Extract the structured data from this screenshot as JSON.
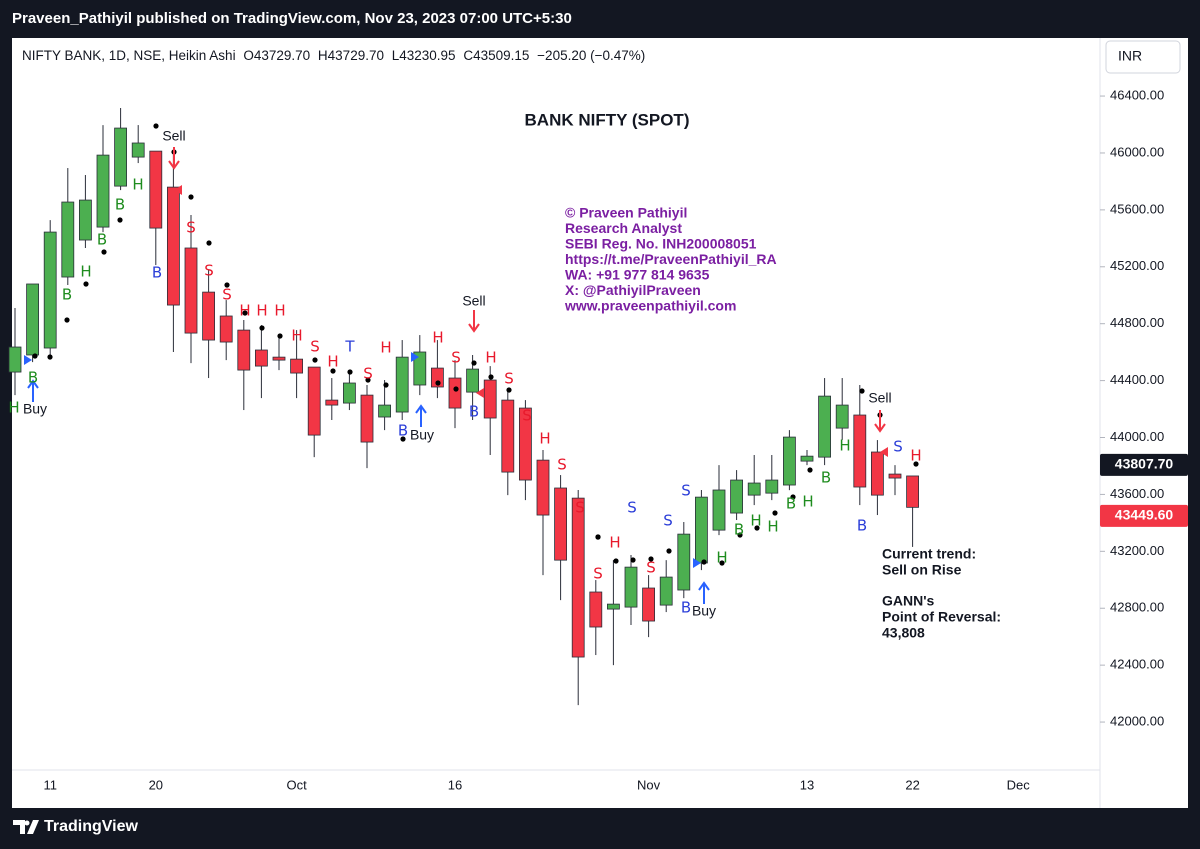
{
  "top_bar": "Praveen_Pathiyil published on TradingView.com, Nov 23, 2023 07:00 UTC+5:30",
  "footer": "TradingView",
  "currency_button": "INR",
  "header": {
    "symbol": "NIFTY BANK, 1D, NSE, Heikin Ashi",
    "open": "O43729.70",
    "high": "H43729.70",
    "low": "L43230.95",
    "close": "C43509.15",
    "change": "−205.20 (−0.47%)"
  },
  "chart_data": {
    "type": "candlestick",
    "title": "BANK NIFTY (SPOT)",
    "categories": [
      null,
      null,
      "11",
      null,
      null,
      null,
      null,
      null,
      "20",
      null,
      null,
      null,
      null,
      null,
      null,
      null,
      "Oct",
      null,
      null,
      null,
      null,
      null,
      null,
      null,
      null,
      "16",
      null,
      null,
      null,
      null,
      null,
      null,
      null,
      null,
      null,
      null,
      "Nov",
      null,
      null,
      null,
      null,
      null,
      null,
      null,
      null,
      "13",
      null,
      null,
      null,
      null,
      null,
      "22"
    ],
    "future_label": "Dec",
    "open": [
      44460,
      44580,
      44629,
      45128,
      45388,
      45479,
      45767,
      45971,
      46013,
      45760,
      45332,
      45022,
      44854,
      44755,
      44615,
      44565,
      44551,
      44495,
      44263,
      44242,
      44298,
      44144,
      44179,
      44369,
      44488,
      44418,
      44319,
      44404,
      44263,
      44207,
      43841,
      43645,
      43574,
      42914,
      42794,
      42808,
      42942,
      42822,
      42928,
      43118,
      43349,
      43469,
      43595,
      43609,
      43666,
      43834,
      43862,
      44066,
      44158,
      43898,
      43743,
      43729.7
    ],
    "high": [
      44910,
      45079,
      45528,
      45894,
      45845,
      46196,
      46316,
      46196,
      46013,
      45985,
      45564,
      45177,
      44966,
      44826,
      44790,
      44720,
      44755,
      44495,
      44418,
      44474,
      44369,
      44404,
      44685,
      44720,
      44685,
      44544,
      44580,
      44502,
      44333,
      44263,
      43912,
      43736,
      43631,
      42998,
      43138,
      43174,
      43033,
      43138,
      43406,
      43631,
      43806,
      43771,
      43877,
      43877,
      44052,
      43912,
      44418,
      44418,
      44369,
      43982,
      43806,
      43729.7
    ],
    "low": [
      44298,
      44530,
      44580,
      45072,
      45332,
      45444,
      45739,
      45929,
      45212,
      44601,
      44523,
      44418,
      44544,
      44193,
      44277,
      44474,
      44277,
      43862,
      44123,
      44193,
      43785,
      44052,
      44123,
      44298,
      44277,
      44066,
      44123,
      43877,
      43595,
      43560,
      43033,
      42857,
      42119,
      42471,
      42400,
      42682,
      42597,
      42773,
      42871,
      43068,
      43314,
      43420,
      43525,
      43560,
      43630,
      43806,
      43806,
      43982,
      43525,
      43455,
      43595,
      43230.95
    ],
    "close": [
      44636,
      45079,
      45444,
      45655,
      45669,
      45985,
      46175,
      46070,
      45472,
      44931,
      44734,
      44685,
      44671,
      44474,
      44502,
      44544,
      44453,
      44017,
      44228,
      44383,
      43968,
      44228,
      44565,
      44601,
      44355,
      44207,
      44481,
      44137,
      43757,
      43701,
      43455,
      43138,
      42457,
      42668,
      42829,
      43089,
      42710,
      43019,
      43321,
      43581,
      43631,
      43701,
      43680,
      43701,
      44003,
      43869,
      44291,
      44228,
      43652,
      43595,
      43715,
      43509.15
    ],
    "up_color": "#4caf50",
    "down_color": "#f23645",
    "wick_color": "#2a2e39",
    "ylim": [
      41663,
      46794
    ],
    "yticks": [
      {
        "value": 42000,
        "label": "42000.00"
      },
      {
        "value": 42400,
        "label": "42400.00"
      },
      {
        "value": 42800,
        "label": "42800.00"
      },
      {
        "value": 43200,
        "label": "43200.00"
      },
      {
        "value": 43600,
        "label": "43600.00"
      },
      {
        "value": 44000,
        "label": "44000.00"
      },
      {
        "value": 44400,
        "label": "44400.00"
      },
      {
        "value": 44800,
        "label": "44800.00"
      },
      {
        "value": 45200,
        "label": "45200.00"
      },
      {
        "value": 45600,
        "label": "45600.00"
      },
      {
        "value": 46000,
        "label": "46000.00"
      },
      {
        "value": 46400,
        "label": "46400.00"
      }
    ],
    "price_labels": [
      {
        "value": 43807.7,
        "label": "43807.70",
        "color": "#131722"
      },
      {
        "value": 43449.6,
        "label": "43449.60",
        "color": "#f23645"
      }
    ],
    "signals": [
      {
        "text": "H",
        "color": "#1e8c1e"
      },
      {
        "text": "B",
        "color": "#1e8c1e"
      },
      {
        "text": "B",
        "color": "#1e8c1e"
      },
      {
        "text": "H",
        "color": "#1e8c1e"
      },
      {
        "text": "B",
        "color": "#1e8c1e"
      },
      {
        "text": "B",
        "color": "#1e8c1e"
      },
      {
        "text": "H",
        "color": "#1e8c1e"
      },
      {
        "text": "B",
        "color": "#2b3ed8"
      },
      {
        "text": "S",
        "color": "#e8192c"
      },
      {
        "text": "S",
        "color": "#e8192c"
      },
      {
        "text": "S",
        "color": "#e8192c"
      },
      {
        "text": "H",
        "color": "#e8192c"
      },
      {
        "text": "H",
        "color": "#e8192c"
      },
      {
        "text": "H",
        "color": "#e8192c"
      },
      {
        "text": "H",
        "color": "#e8192c"
      },
      {
        "text": "S",
        "color": "#e8192c"
      },
      {
        "text": "H",
        "color": "#e8192c"
      },
      {
        "text": "T",
        "color": "#2b3ed8"
      },
      {
        "text": "S",
        "color": "#e8192c"
      },
      {
        "text": "H",
        "color": "#e8192c"
      },
      {
        "text": "B",
        "color": "#2b3ed8"
      },
      {
        "text": "H",
        "color": "#e8192c"
      },
      {
        "text": "S",
        "color": "#e8192c"
      },
      {
        "text": "B",
        "color": "#2b3ed8"
      },
      {
        "text": "H",
        "color": "#e8192c"
      },
      {
        "text": "S",
        "color": "#e8192c"
      },
      {
        "text": "S",
        "color": "#e8192c"
      },
      {
        "text": "H",
        "color": "#e8192c"
      },
      {
        "text": "S",
        "color": "#e8192c"
      },
      {
        "text": "S",
        "color": "#e8192c"
      },
      {
        "text": "S",
        "color": "#e8192c"
      },
      {
        "text": "H",
        "color": "#e8192c"
      },
      {
        "text": "S",
        "color": "#2b3ed8"
      },
      {
        "text": "S",
        "color": "#e8192c"
      },
      {
        "text": "S",
        "color": "#2b3ed8"
      },
      {
        "text": "S",
        "color": "#2b3ed8"
      },
      {
        "text": "B",
        "color": "#2b3ed8"
      },
      {
        "text": "H",
        "color": "#1e8c1e"
      },
      {
        "text": "B",
        "color": "#1e8c1e"
      },
      {
        "text": "H",
        "color": "#1e8c1e"
      },
      {
        "text": "H",
        "color": "#1e8c1e"
      },
      {
        "text": "B",
        "color": "#1e8c1e"
      },
      {
        "text": "H",
        "color": "#1e8c1e"
      },
      {
        "text": "B",
        "color": "#1e8c1e"
      },
      {
        "text": "H",
        "color": "#1e8c1e"
      },
      {
        "text": "B",
        "color": "#2b3ed8"
      },
      {
        "text": "S",
        "color": "#2b3ed8"
      },
      {
        "text": "H",
        "color": "#e8192c"
      }
    ],
    "trade_labels": [
      "Sell",
      "Sell",
      "Sell",
      "Buy",
      "Buy",
      "Buy"
    ],
    "watermark": [
      "© Praveen Pathiyil",
      "Research Analyst",
      "SEBI Reg. No. INH200008051",
      "https://t.me/PraveenPathiyil_RA",
      "WA: +91 977 814 9635",
      "X: @PathiyilPraveen",
      "www.praveenpathiyil.com"
    ],
    "notes": [
      "Current trend:",
      "Sell on Rise",
      "GANN's",
      "Point of Reversal:",
      "43,808"
    ]
  }
}
